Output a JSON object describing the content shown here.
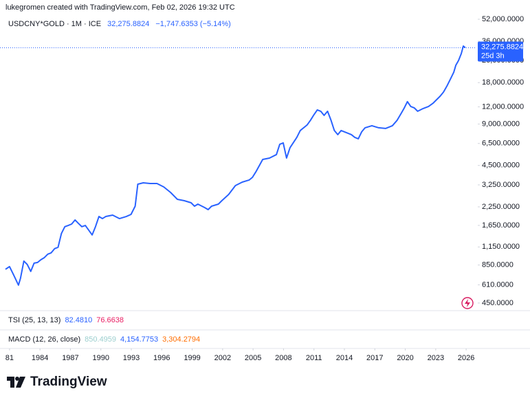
{
  "header": {
    "attribution": "lukegromen created with TradingView.com, Feb 02, 2026 19:32 UTC"
  },
  "chart_data": {
    "type": "line",
    "title": "USDCNY*GOLD · 1M · ICE",
    "last_price": {
      "value": 32275.8824,
      "label": "32,275.8824"
    },
    "change_label": "−1,747.6353 (−5.14%)",
    "countdown": "25d 3h",
    "color": "#2962ff",
    "log_scale": true,
    "x": [
      1980.6,
      1981.0,
      1981.4,
      1981.88,
      1982.08,
      1982.41,
      1982.75,
      1983.09,
      1983.42,
      1983.76,
      1984.09,
      1984.43,
      1984.77,
      1985.1,
      1985.44,
      1985.78,
      1986.11,
      1986.45,
      1986.78,
      1987.12,
      1987.46,
      1987.79,
      1988.13,
      1988.47,
      1988.8,
      1989.14,
      1989.47,
      1989.81,
      1990.15,
      1990.48,
      1991.16,
      1991.83,
      1992.5,
      1992.97,
      1993.38,
      1993.64,
      1994.18,
      1994.85,
      1995.53,
      1996.2,
      1996.87,
      1997.54,
      1998.22,
      1998.89,
      1999.23,
      1999.56,
      2000.23,
      2000.57,
      2000.91,
      2001.58,
      2001.92,
      2002.59,
      2003.26,
      2003.93,
      2004.61,
      2004.94,
      2005.28,
      2005.95,
      2006.62,
      2007.3,
      2007.63,
      2007.97,
      2008.3,
      2008.64,
      2009.31,
      2009.65,
      2010.32,
      2010.66,
      2011.0,
      2011.33,
      2011.67,
      2012.0,
      2012.34,
      2012.68,
      2013.01,
      2013.35,
      2013.68,
      2014.02,
      2014.36,
      2014.69,
      2015.03,
      2015.37,
      2015.7,
      2016.04,
      2016.71,
      2017.38,
      2018.06,
      2018.73,
      2019.2,
      2019.6,
      2019.87,
      2020.21,
      2020.54,
      2020.88,
      2021.22,
      2021.76,
      2022.29,
      2022.76,
      2023.1,
      2023.44,
      2023.77,
      2024.11,
      2024.45,
      2024.78,
      2024.98,
      2025.25,
      2025.52,
      2025.72,
      2025.92
    ],
    "values": [
      791,
      828,
      721,
      607,
      681,
      908,
      857,
      764,
      877,
      887,
      929,
      962,
      1019,
      1042,
      1117,
      1143,
      1439,
      1614,
      1648,
      1687,
      1807,
      1706,
      1614,
      1648,
      1524,
      1406,
      1614,
      1914,
      1849,
      1914,
      1959,
      1849,
      1914,
      1982,
      2275,
      3289,
      3365,
      3327,
      3327,
      3141,
      2864,
      2553,
      2495,
      2410,
      2275,
      2355,
      2223,
      2148,
      2275,
      2355,
      2495,
      2767,
      3214,
      3404,
      3524,
      3690,
      4046,
      4977,
      5093,
      5395,
      6412,
      6561,
      5093,
      6053,
      7194,
      8072,
      8851,
      9594,
      10520,
      11402,
      11143,
      10399,
      11143,
      9594,
      8072,
      7534,
      8072,
      7889,
      7709,
      7534,
      7194,
      7031,
      7889,
      8453,
      8750,
      8453,
      8356,
      8750,
      9594,
      10765,
      11668,
      13092,
      12078,
      11803,
      11143,
      11668,
      12078,
      12794,
      13552,
      14355,
      15382,
      17022,
      19099,
      21429,
      24044,
      26062,
      29242,
      33189,
      32275.8824
    ],
    "xlim": [
      1980.06,
      2026.94
    ],
    "ylim": [
      396,
      57000
    ],
    "xticks": [
      {
        "value": 1981,
        "label": "81"
      },
      1984,
      1987,
      1990,
      1993,
      1996,
      1999,
      2002,
      2005,
      2008,
      2011,
      2014,
      2017,
      2020,
      2023,
      2026
    ],
    "yticks": [
      {
        "value": 52000,
        "label": "52,000.0000"
      },
      {
        "value": 36000,
        "label": "36,000.0000"
      },
      {
        "value": 26000,
        "label": "26,000.0000"
      },
      {
        "value": 18000,
        "label": "18,000.0000"
      },
      {
        "value": 12000,
        "label": "12,000.0000"
      },
      {
        "value": 9000,
        "label": "9,000.0000"
      },
      {
        "value": 6500,
        "label": "6,500.0000"
      },
      {
        "value": 4500,
        "label": "4,500.0000"
      },
      {
        "value": 3250,
        "label": "3,250.0000"
      },
      {
        "value": 2250,
        "label": "2,250.0000"
      },
      {
        "value": 1650,
        "label": "1,650.0000"
      },
      {
        "value": 1150,
        "label": "1,150.0000"
      },
      {
        "value": 850,
        "label": "850.0000"
      },
      {
        "value": 610,
        "label": "610.0000"
      },
      {
        "value": 450,
        "label": "450.0000"
      }
    ],
    "indicators": [
      {
        "title": "TSI (25, 13, 13)",
        "readings": [
          {
            "label": "82.4810",
            "color": "#2962ff"
          },
          {
            "label": "76.6638",
            "color": "#e91e63"
          }
        ]
      },
      {
        "title": "MACD (12, 26, close)",
        "readings": [
          {
            "label": "850.4959",
            "color": "#9ccfcf"
          },
          {
            "label": "4,154.7753",
            "color": "#2962ff"
          },
          {
            "label": "3,304.2794",
            "color": "#ff6d00"
          }
        ]
      }
    ]
  },
  "footer": {
    "brand": "TradingView"
  }
}
